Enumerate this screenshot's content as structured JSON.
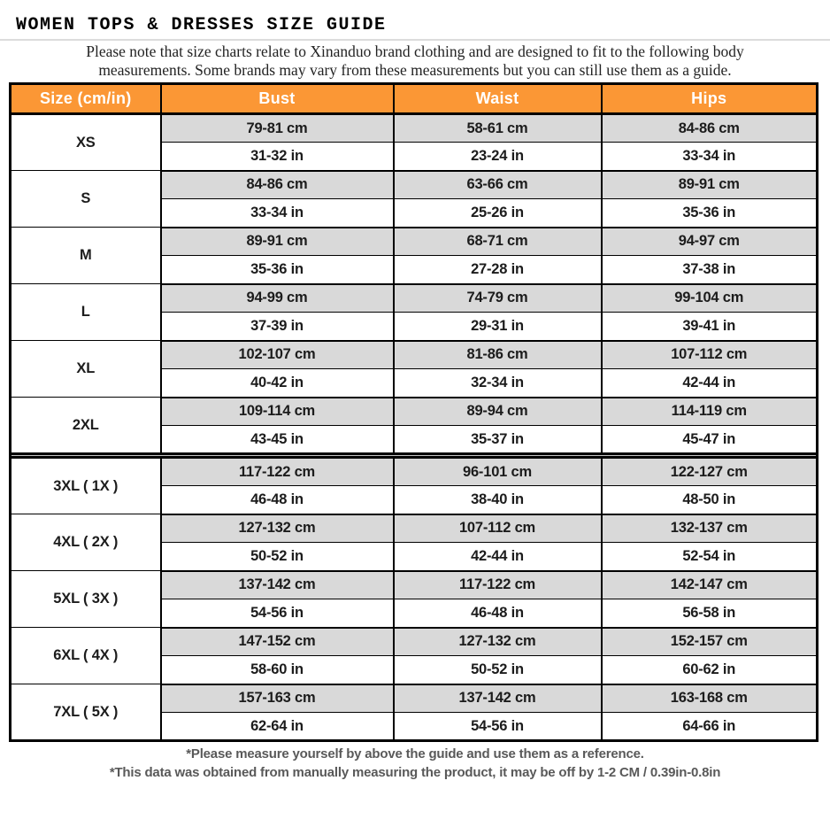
{
  "title": "WOMEN TOPS & DRESSES SIZE GUIDE",
  "note": {
    "line1": "Please note that size charts relate to  Xinanduo brand clothing and are designed to fit to the following body",
    "line2": "measurements. Some brands may vary from these measurements but you can still use them as a guide."
  },
  "table": {
    "headers": [
      "Size (cm/in)",
      "Bust",
      "Waist",
      "Hips"
    ],
    "rows": [
      {
        "size": "XS",
        "bust_cm": "79-81 cm",
        "waist_cm": "58-61 cm",
        "hips_cm": "84-86 cm",
        "bust_in": "31-32 in",
        "waist_in": "23-24 in",
        "hips_in": "33-34 in"
      },
      {
        "size": "S",
        "bust_cm": "84-86 cm",
        "waist_cm": "63-66 cm",
        "hips_cm": "89-91 cm",
        "bust_in": "33-34 in",
        "waist_in": "25-26 in",
        "hips_in": "35-36 in"
      },
      {
        "size": "M",
        "bust_cm": "89-91 cm",
        "waist_cm": "68-71 cm",
        "hips_cm": "94-97 cm",
        "bust_in": "35-36 in",
        "waist_in": "27-28 in",
        "hips_in": "37-38 in"
      },
      {
        "size": "L",
        "bust_cm": "94-99 cm",
        "waist_cm": "74-79 cm",
        "hips_cm": "99-104 cm",
        "bust_in": "37-39 in",
        "waist_in": "29-31 in",
        "hips_in": "39-41 in"
      },
      {
        "size": "XL",
        "bust_cm": "102-107 cm",
        "waist_cm": "81-86 cm",
        "hips_cm": "107-112 cm",
        "bust_in": "40-42 in",
        "waist_in": "32-34 in",
        "hips_in": "42-44 in"
      },
      {
        "size": "2XL",
        "bust_cm": "109-114 cm",
        "waist_cm": "89-94 cm",
        "hips_cm": "114-119 cm",
        "bust_in": "43-45 in",
        "waist_in": "35-37 in",
        "hips_in": "45-47 in"
      },
      {
        "size": "3XL ( 1X )",
        "bust_cm": "117-122 cm",
        "waist_cm": "96-101 cm",
        "hips_cm": "122-127 cm",
        "bust_in": "46-48 in",
        "waist_in": "38-40 in",
        "hips_in": "48-50 in"
      },
      {
        "size": "4XL ( 2X )",
        "bust_cm": "127-132 cm",
        "waist_cm": "107-112 cm",
        "hips_cm": "132-137 cm",
        "bust_in": "50-52 in",
        "waist_in": "42-44 in",
        "hips_in": "52-54 in"
      },
      {
        "size": "5XL ( 3X )",
        "bust_cm": "137-142 cm",
        "waist_cm": "117-122 cm",
        "hips_cm": "142-147 cm",
        "bust_in": "54-56 in",
        "waist_in": "46-48 in",
        "hips_in": "56-58 in"
      },
      {
        "size": "6XL ( 4X )",
        "bust_cm": "147-152 cm",
        "waist_cm": "127-132 cm",
        "hips_cm": "152-157 cm",
        "bust_in": "58-60 in",
        "waist_in": "50-52 in",
        "hips_in": "60-62 in"
      },
      {
        "size": "7XL ( 5X )",
        "bust_cm": "157-163 cm",
        "waist_cm": "137-142 cm",
        "hips_cm": "163-168 cm",
        "bust_in": "62-64 in",
        "waist_in": "54-56 in",
        "hips_in": "64-66 in"
      }
    ]
  },
  "footnotes": [
    "*Please measure yourself by above the guide and use them as a reference.",
    "*This data was obtained from manually measuring the product, it may be off by 1-2 CM / 0.39in-0.8in"
  ],
  "colors": {
    "header_bg": "#FB9735",
    "header_text": "#ffffff",
    "cm_row_bg": "#d9d9d9",
    "in_row_bg": "#ffffff",
    "border": "#000000",
    "divider_band": "#c4c4c4",
    "footnote_text": "#595959"
  }
}
